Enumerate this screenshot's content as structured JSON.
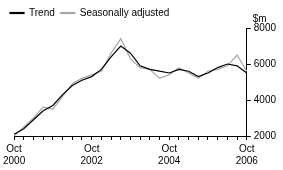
{
  "chart_data": {
    "type": "line",
    "ylabel": "$m",
    "categories": [
      "Oct 2000",
      null,
      null,
      null,
      null,
      null,
      null,
      null,
      "Oct 2002",
      null,
      null,
      null,
      null,
      null,
      null,
      null,
      "Oct 2004",
      null,
      null,
      null,
      null,
      null,
      null,
      null,
      "Oct 2006"
    ],
    "series": [
      {
        "name": "Trend",
        "color": "#000000",
        "values": [
          2100,
          2400,
          2900,
          3400,
          3700,
          4300,
          4800,
          5100,
          5300,
          5700,
          6400,
          7000,
          6600,
          5900,
          5700,
          5600,
          5500,
          5700,
          5600,
          5300,
          5500,
          5800,
          6000,
          5900,
          5500
        ]
      },
      {
        "name": "Seasonally adjusted",
        "color": "#a6a6a6",
        "values": [
          2000,
          2500,
          3000,
          3600,
          3500,
          4200,
          4900,
          5200,
          5400,
          5600,
          6600,
          7400,
          6300,
          5800,
          5700,
          5200,
          5400,
          5800,
          5500,
          5200,
          5600,
          5700,
          5900,
          6500,
          5600
        ]
      }
    ],
    "ylim": [
      2000,
      8000
    ],
    "yticks": [
      2000,
      4000,
      6000,
      8000
    ],
    "grid": false,
    "legend": "upper left"
  }
}
